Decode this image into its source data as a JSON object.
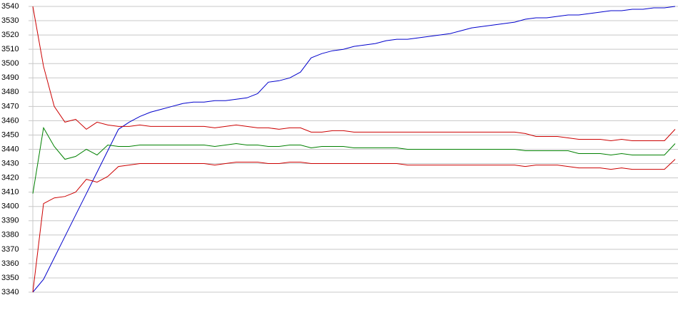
{
  "chart_data": {
    "type": "line",
    "ylim": [
      3340,
      3540
    ],
    "yticks": [
      3340,
      3350,
      3360,
      3370,
      3380,
      3390,
      3400,
      3410,
      3420,
      3430,
      3440,
      3450,
      3460,
      3470,
      3480,
      3490,
      3500,
      3510,
      3520,
      3530,
      3540
    ],
    "grid": true,
    "series": [
      {
        "color": "#0000cc",
        "values": [
          3340,
          3349,
          3364,
          3379,
          3394,
          3409,
          3424,
          3439,
          3454,
          3459,
          3463,
          3466,
          3468,
          3470,
          3472,
          3473,
          3473,
          3474,
          3474,
          3475,
          3476,
          3479,
          3487,
          3488,
          3490,
          3494,
          3504,
          3507,
          3509,
          3510,
          3512,
          3513,
          3514,
          3516,
          3517,
          3517,
          3518,
          3519,
          3520,
          3521,
          3523,
          3525,
          3526,
          3527,
          3528,
          3529,
          3531,
          3532,
          3532,
          3533,
          3534,
          3534,
          3535,
          3536,
          3537,
          3537,
          3538,
          3538,
          3539,
          3539,
          3540
        ]
      },
      {
        "color": "#cc0000",
        "values": [
          3540,
          3498,
          3470,
          3459,
          3461,
          3454,
          3459,
          3457,
          3456,
          3456,
          3457,
          3456,
          3456,
          3456,
          3456,
          3456,
          3456,
          3455,
          3456,
          3457,
          3456,
          3455,
          3455,
          3454,
          3455,
          3455,
          3452,
          3452,
          3453,
          3453,
          3452,
          3452,
          3452,
          3452,
          3452,
          3452,
          3452,
          3452,
          3452,
          3452,
          3452,
          3452,
          3452,
          3452,
          3452,
          3452,
          3451,
          3449,
          3449,
          3449,
          3448,
          3447,
          3447,
          3447,
          3446,
          3447,
          3446,
          3446,
          3446,
          3446,
          3454
        ]
      },
      {
        "color": "#008000",
        "values": [
          3409,
          3455,
          3442,
          3433,
          3435,
          3440,
          3436,
          3443,
          3442,
          3442,
          3443,
          3443,
          3443,
          3443,
          3443,
          3443,
          3443,
          3442,
          3443,
          3444,
          3443,
          3443,
          3442,
          3442,
          3443,
          3443,
          3441,
          3442,
          3442,
          3442,
          3441,
          3441,
          3441,
          3441,
          3441,
          3440,
          3440,
          3440,
          3440,
          3440,
          3440,
          3440,
          3440,
          3440,
          3440,
          3440,
          3439,
          3439,
          3439,
          3439,
          3439,
          3437,
          3437,
          3437,
          3436,
          3437,
          3436,
          3436,
          3436,
          3436,
          3444
        ]
      },
      {
        "color": "#cc0000",
        "values": [
          3340,
          3402,
          3406,
          3407,
          3410,
          3419,
          3417,
          3421,
          3428,
          3429,
          3430,
          3430,
          3430,
          3430,
          3430,
          3430,
          3430,
          3429,
          3430,
          3431,
          3431,
          3431,
          3430,
          3430,
          3431,
          3431,
          3430,
          3430,
          3430,
          3430,
          3430,
          3430,
          3430,
          3430,
          3430,
          3429,
          3429,
          3429,
          3429,
          3429,
          3429,
          3429,
          3429,
          3429,
          3429,
          3429,
          3428,
          3429,
          3429,
          3429,
          3428,
          3427,
          3427,
          3427,
          3426,
          3427,
          3426,
          3426,
          3426,
          3426,
          3433
        ]
      }
    ]
  }
}
